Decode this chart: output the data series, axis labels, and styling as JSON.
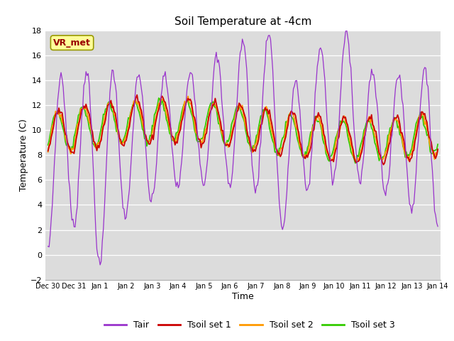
{
  "title": "Soil Temperature at -4cm",
  "xlabel": "Time",
  "ylabel": "Temperature (C)",
  "ylim": [
    -2,
    18
  ],
  "yticks": [
    -2,
    0,
    2,
    4,
    6,
    8,
    10,
    12,
    14,
    16,
    18
  ],
  "bg_color": "#dcdcdc",
  "fig_bg_color": "#ffffff",
  "line_colors": {
    "Tair": "#9933cc",
    "Tsoil set 1": "#cc0000",
    "Tsoil set 2": "#ff9900",
    "Tsoil set 3": "#33cc00"
  },
  "vr_met_label": "VR_met",
  "vr_met_box_color": "#ffff99",
  "vr_met_text_color": "#990000",
  "tick_labels": [
    "Dec 30",
    "Dec 31",
    "Jan 1",
    "Jan 2",
    "Jan 3",
    "Jan 4",
    "Jan 5",
    "Jan 6",
    "Jan 7",
    "Jan 8",
    "Jan 9",
    "Jan 10",
    "Jan 11",
    "Jan 12",
    "Jan 13",
    "Jan 14"
  ]
}
